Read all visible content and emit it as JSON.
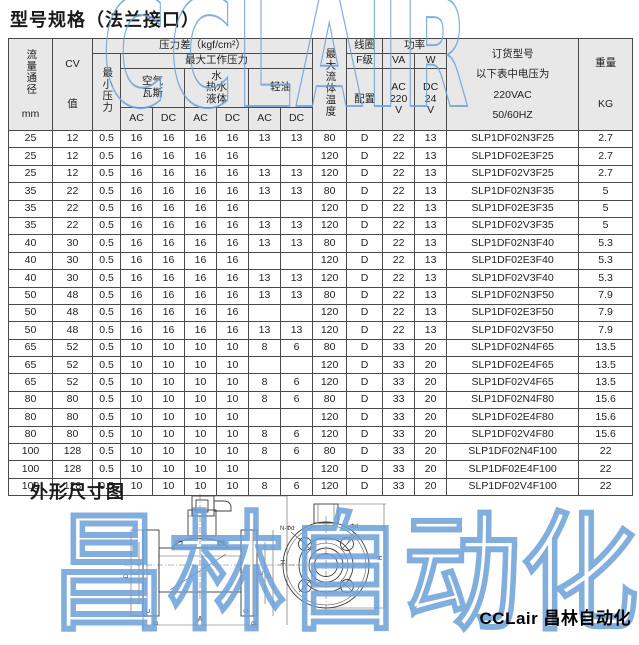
{
  "sections": {
    "specs_title": "型号规格（法兰接口）",
    "dims_title": "外形尺寸图"
  },
  "watermarks": {
    "top": "CCLAIR",
    "bottom": "昌林自动化",
    "color": "#6ca0d8"
  },
  "footer": {
    "brand": "CCLair 昌林自动化"
  },
  "table": {
    "header": {
      "flow": "流量通径",
      "flow_unit": "mm",
      "cv": [
        "CV",
        "值"
      ],
      "pressure_diff": "压力差（kgf/cm²）",
      "min_pressure": "最小压力",
      "max_working_pressure": "最大工作压力",
      "air": [
        "空气",
        "瓦斯"
      ],
      "water": [
        "水",
        "热水",
        "液体"
      ],
      "light_oil": "轻油",
      "ac": "AC",
      "dc": "DC",
      "max_fluid_temp": "最大流体温度",
      "coil": "线圈",
      "coil_grade": "F级",
      "coil_config": "配置",
      "power": "功率",
      "power_va": "VA",
      "power_w": "W",
      "power_ac": [
        "AC",
        "220",
        "V"
      ],
      "power_dc": [
        "DC",
        "24",
        "V"
      ],
      "order": [
        "订货型号",
        "以下表中电压为",
        "220VAC",
        "50/60HZ"
      ],
      "weight": "重量",
      "weight_unit": "KG"
    },
    "rows": [
      [
        "25",
        "12",
        "0.5",
        "16",
        "16",
        "16",
        "16",
        "13",
        "13",
        "80",
        "D",
        "22",
        "13",
        "SLP1DF02N3F25",
        "2.7"
      ],
      [
        "25",
        "12",
        "0.5",
        "16",
        "16",
        "16",
        "16",
        "",
        "",
        "120",
        "D",
        "22",
        "13",
        "SLP1DF02E3F25",
        "2.7"
      ],
      [
        "25",
        "12",
        "0.5",
        "16",
        "16",
        "16",
        "16",
        "13",
        "13",
        "120",
        "D",
        "22",
        "13",
        "SLP1DF02V3F25",
        "2.7"
      ],
      [
        "35",
        "22",
        "0.5",
        "16",
        "16",
        "16",
        "16",
        "13",
        "13",
        "80",
        "D",
        "22",
        "13",
        "SLP1DF02N3F35",
        "5"
      ],
      [
        "35",
        "22",
        "0.5",
        "16",
        "16",
        "16",
        "16",
        "",
        "",
        "120",
        "D",
        "22",
        "13",
        "SLP1DF02E3F35",
        "5"
      ],
      [
        "35",
        "22",
        "0.5",
        "16",
        "16",
        "16",
        "16",
        "13",
        "13",
        "120",
        "D",
        "22",
        "13",
        "SLP1DF02V3F35",
        "5"
      ],
      [
        "40",
        "30",
        "0.5",
        "16",
        "16",
        "16",
        "16",
        "13",
        "13",
        "80",
        "D",
        "22",
        "13",
        "SLP1DF02N3F40",
        "5.3"
      ],
      [
        "40",
        "30",
        "0.5",
        "16",
        "16",
        "16",
        "16",
        "",
        "",
        "120",
        "D",
        "22",
        "13",
        "SLP1DF02E3F40",
        "5.3"
      ],
      [
        "40",
        "30",
        "0.5",
        "16",
        "16",
        "16",
        "16",
        "13",
        "13",
        "120",
        "D",
        "22",
        "13",
        "SLP1DF02V3F40",
        "5.3"
      ],
      [
        "50",
        "48",
        "0.5",
        "16",
        "16",
        "16",
        "16",
        "13",
        "13",
        "80",
        "D",
        "22",
        "13",
        "SLP1DF02N3F50",
        "7.9"
      ],
      [
        "50",
        "48",
        "0.5",
        "16",
        "16",
        "16",
        "16",
        "",
        "",
        "120",
        "D",
        "22",
        "13",
        "SLP1DF02E3F50",
        "7.9"
      ],
      [
        "50",
        "48",
        "0.5",
        "16",
        "16",
        "16",
        "16",
        "13",
        "13",
        "120",
        "D",
        "22",
        "13",
        "SLP1DF02V3F50",
        "7.9"
      ],
      [
        "65",
        "52",
        "0.5",
        "10",
        "10",
        "10",
        "10",
        "8",
        "6",
        "80",
        "D",
        "33",
        "20",
        "SLP1DF02N4F65",
        "13.5"
      ],
      [
        "65",
        "52",
        "0.5",
        "10",
        "10",
        "10",
        "10",
        "",
        "",
        "120",
        "D",
        "33",
        "20",
        "SLP1DF02E4F65",
        "13.5"
      ],
      [
        "65",
        "52",
        "0.5",
        "10",
        "10",
        "10",
        "10",
        "8",
        "6",
        "120",
        "D",
        "33",
        "20",
        "SLP1DF02V4F65",
        "13.5"
      ],
      [
        "80",
        "80",
        "0.5",
        "10",
        "10",
        "10",
        "10",
        "8",
        "6",
        "80",
        "D",
        "33",
        "20",
        "SLP1DF02N4F80",
        "15.6"
      ],
      [
        "80",
        "80",
        "0.5",
        "10",
        "10",
        "10",
        "10",
        "",
        "",
        "120",
        "D",
        "33",
        "20",
        "SLP1DF02E4F80",
        "15.6"
      ],
      [
        "80",
        "80",
        "0.5",
        "10",
        "10",
        "10",
        "10",
        "8",
        "6",
        "120",
        "D",
        "33",
        "20",
        "SLP1DF02V4F80",
        "15.6"
      ],
      [
        "100",
        "128",
        "0.5",
        "10",
        "10",
        "10",
        "10",
        "8",
        "6",
        "80",
        "D",
        "33",
        "20",
        "SLP1DF02N4F100",
        "22"
      ],
      [
        "100",
        "128",
        "0.5",
        "10",
        "10",
        "10",
        "10",
        "",
        "",
        "120",
        "D",
        "33",
        "20",
        "SLP1DF02E4F100",
        "22"
      ],
      [
        "100",
        "128",
        "0.5",
        "10",
        "10",
        "10",
        "10",
        "8",
        "6",
        "120",
        "D",
        "33",
        "20",
        "SLP1DF02V4F100",
        "22"
      ]
    ]
  },
  "diagram": {
    "labels": {
      "a": "A",
      "b": "B",
      "c": "C",
      "d": "D",
      "e": "E",
      "h": "H",
      "n_holes": "N-Φd",
      "hole_dia": "Φd"
    }
  }
}
